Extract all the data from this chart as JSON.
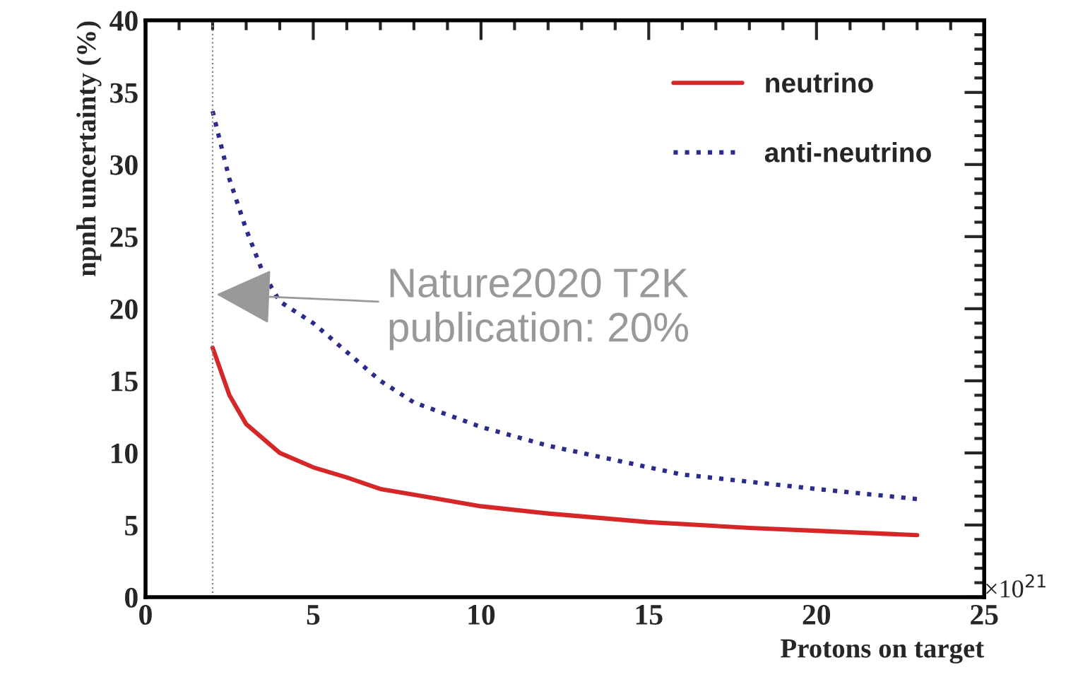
{
  "chart_data": {
    "type": "line",
    "xlabel": "Protons on target",
    "ylabel": "npnh uncertainty (%)",
    "xlim": [
      0,
      25
    ],
    "xticks": [
      0,
      5,
      10,
      15,
      20,
      25
    ],
    "ylim": [
      0,
      40
    ],
    "yticks": [
      0,
      5,
      10,
      15,
      20,
      25,
      30,
      35,
      40
    ],
    "grid": false,
    "legend": "top right",
    "series": [
      {
        "name": "neutrino",
        "color": "#d62728",
        "line_style": "solid",
        "x": [
          2,
          2.5,
          3,
          4,
          5,
          6,
          7,
          8,
          10,
          12,
          15,
          18,
          20,
          23
        ],
        "values": [
          17.3,
          14,
          12,
          10,
          9,
          8.3,
          7.5,
          7.1,
          6.3,
          5.8,
          5.2,
          4.8,
          4.6,
          4.3
        ]
      },
      {
        "name": "anti-neutrino",
        "color": "#2b2b8c",
        "line_style": "dotted",
        "x": [
          2,
          2.5,
          3,
          3.5,
          4,
          5,
          6,
          7,
          8,
          10,
          12,
          14,
          16,
          18,
          20,
          23
        ],
        "values": [
          33.7,
          29,
          25.5,
          22.5,
          20.5,
          19,
          17,
          15,
          13.5,
          11.8,
          10.5,
          9.5,
          8.5,
          8,
          7.5,
          6.8
        ]
      }
    ],
    "ref_lines": [
      {
        "axis": "x",
        "value": 2,
        "color": "#888888",
        "line_style": "dotted"
      }
    ],
    "annotations": [
      {
        "text": "Nature2020 T2K\npublication: 20%",
        "x": 2,
        "y": 21
      },
      "×10$^{21}$"
    ]
  }
}
